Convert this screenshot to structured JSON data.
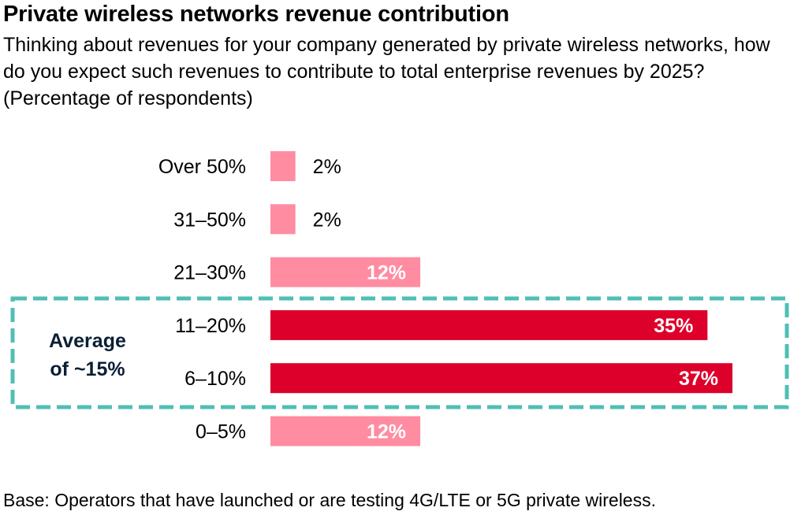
{
  "chart_data": {
    "type": "bar",
    "orientation": "horizontal",
    "title": "Private wireless networks revenue contribution",
    "subtitle": "Thinking about revenues for your company generated by private wireless networks, how do you expect such revenues to contribute to total enterprise revenues by 2025? (Percentage of respondents)",
    "categories": [
      "Over 50%",
      "31–50%",
      "21–30%",
      "11–20%",
      "6–10%",
      "0–5%"
    ],
    "values": [
      2,
      2,
      12,
      35,
      37,
      12
    ],
    "value_labels": [
      "2%",
      "2%",
      "12%",
      "35%",
      "37%",
      "12%"
    ],
    "highlighted": [
      false,
      false,
      false,
      true,
      true,
      false
    ],
    "xlabel": "",
    "ylabel": "",
    "xlim": [
      0,
      37
    ],
    "grid": false,
    "annotation": {
      "text_lines": [
        "Average",
        "of ~15%"
      ],
      "covers_categories": [
        "11–20%",
        "6–10%"
      ],
      "style": "dashed box"
    },
    "footnote": "Base: Operators that have launched or are testing 4G/LTE or 5G private wireless."
  },
  "colors": {
    "bar_default": "#ff8ca1",
    "bar_highlight": "#dd002b",
    "annotation_box": "#4fbfb5",
    "annotation_text": "#0b1f35"
  }
}
